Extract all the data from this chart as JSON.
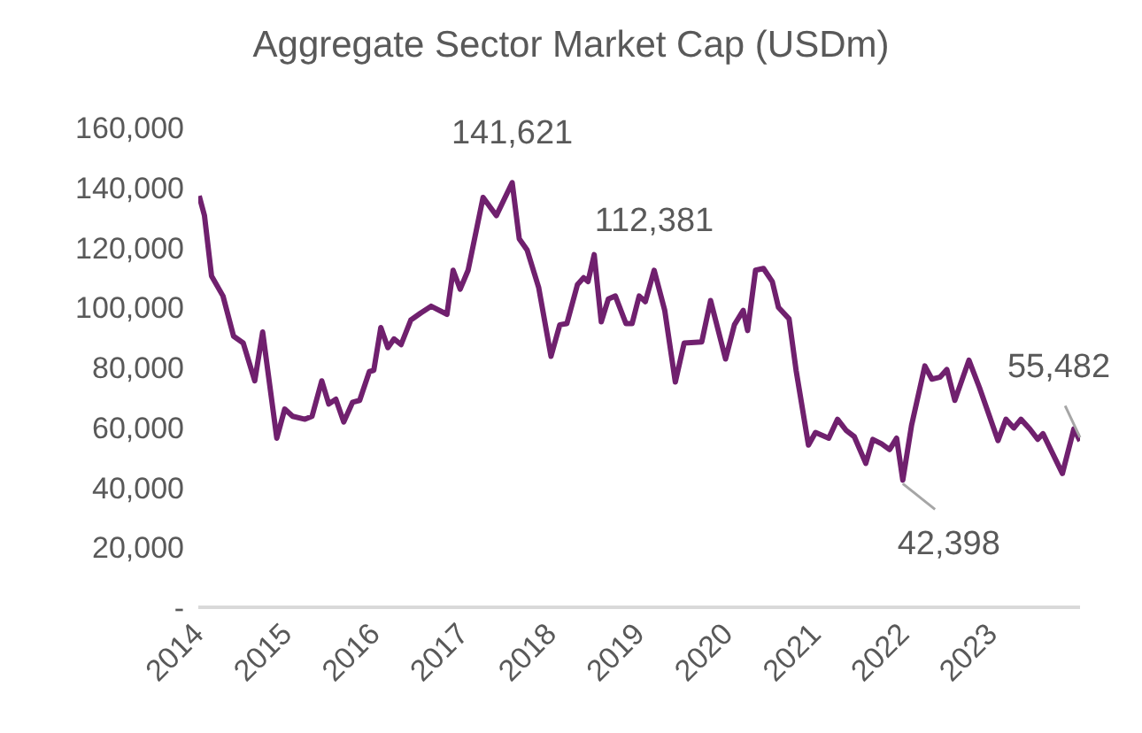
{
  "chart_data": {
    "type": "line",
    "title": "Aggregate Sector Market Cap (USDm)",
    "x": [
      2014.01,
      2014.07,
      2014.15,
      2014.28,
      2014.4,
      2014.51,
      2014.64,
      2014.73,
      2014.89,
      2014.98,
      2015.07,
      2015.21,
      2015.29,
      2015.4,
      2015.48,
      2015.56,
      2015.65,
      2015.75,
      2015.83,
      2015.94,
      2015.99,
      2016.07,
      2016.15,
      2016.22,
      2016.3,
      2016.41,
      2016.52,
      2016.64,
      2016.82,
      2016.89,
      2016.97,
      2017.06,
      2017.23,
      2017.38,
      2017.56,
      2017.64,
      2017.73,
      2017.86,
      2018.0,
      2018.1,
      2018.18,
      2018.3,
      2018.37,
      2018.42,
      2018.49,
      2018.57,
      2018.65,
      2018.73,
      2018.85,
      2018.92,
      2019.0,
      2019.07,
      2019.17,
      2019.29,
      2019.41,
      2019.51,
      2019.71,
      2019.81,
      2019.98,
      2020.08,
      2020.18,
      2020.23,
      2020.32,
      2020.41,
      2020.51,
      2020.58,
      2020.7,
      2020.78,
      2020.92,
      2021.0,
      2021.15,
      2021.25,
      2021.35,
      2021.44,
      2021.57,
      2021.65,
      2021.75,
      2021.84,
      2021.92,
      2021.99,
      2022.09,
      2022.24,
      2022.32,
      2022.41,
      2022.49,
      2022.58,
      2022.74,
      2022.86,
      2023.07,
      2023.16,
      2023.25,
      2023.33,
      2023.43,
      2023.52,
      2023.58,
      2023.8,
      2023.93,
      2024.0
    ],
    "series": [
      {
        "color": "#70206e",
        "values": [
          137200,
          130600,
          110500,
          103800,
          90400,
          88100,
          75500,
          91800,
          56400,
          66100,
          63700,
          62700,
          63700,
          75500,
          67800,
          69400,
          61800,
          68400,
          69000,
          78600,
          79000,
          93300,
          86600,
          89500,
          87600,
          95800,
          98100,
          100400,
          97700,
          112400,
          106100,
          112400,
          136700,
          130600,
          141621,
          122900,
          119100,
          106700,
          83700,
          94200,
          94600,
          107600,
          109900,
          108600,
          117600,
          95200,
          102800,
          103800,
          94600,
          94600,
          103800,
          101900,
          112381,
          99000,
          75100,
          88100,
          88500,
          102300,
          82800,
          94200,
          99000,
          92300,
          112400,
          113000,
          108600,
          100000,
          96200,
          79000,
          54100,
          58300,
          56400,
          62700,
          58900,
          56900,
          48000,
          56000,
          54500,
          52600,
          56400,
          42398,
          60800,
          80500,
          76100,
          76700,
          79300,
          69000,
          82400,
          73200,
          55600,
          62700,
          59800,
          62700,
          59500,
          56000,
          57900,
          44600,
          59500,
          55482
        ]
      }
    ],
    "xlim": [
      2014,
      2024
    ],
    "xticks": [
      2014,
      2015,
      2016,
      2017,
      2018,
      2019,
      2020,
      2021,
      2022,
      2023
    ],
    "ylim": [
      0,
      160000
    ],
    "yticks": [
      {
        "value": 0,
        "label": "-"
      },
      {
        "value": 20000,
        "label": "20,000"
      },
      {
        "value": 40000,
        "label": "40,000"
      },
      {
        "value": 60000,
        "label": "60,000"
      },
      {
        "value": 80000,
        "label": "80,000"
      },
      {
        "value": 100000,
        "label": "100,000"
      },
      {
        "value": 120000,
        "label": "120,000"
      },
      {
        "value": 140000,
        "label": "140,000"
      },
      {
        "value": 160000,
        "label": "160,000"
      }
    ],
    "annotations": [
      {
        "text": "141,621",
        "x": 2017.56,
        "y": 141621
      },
      {
        "text": "112,381",
        "x": 2019.17,
        "y": 112381
      },
      {
        "text": "42,398",
        "x": 2021.99,
        "y": 42398
      },
      {
        "text": "55,482",
        "x": 2024.0,
        "y": 55482
      }
    ],
    "grid": false,
    "legend": false,
    "marker": "none",
    "line_style": "solid"
  }
}
